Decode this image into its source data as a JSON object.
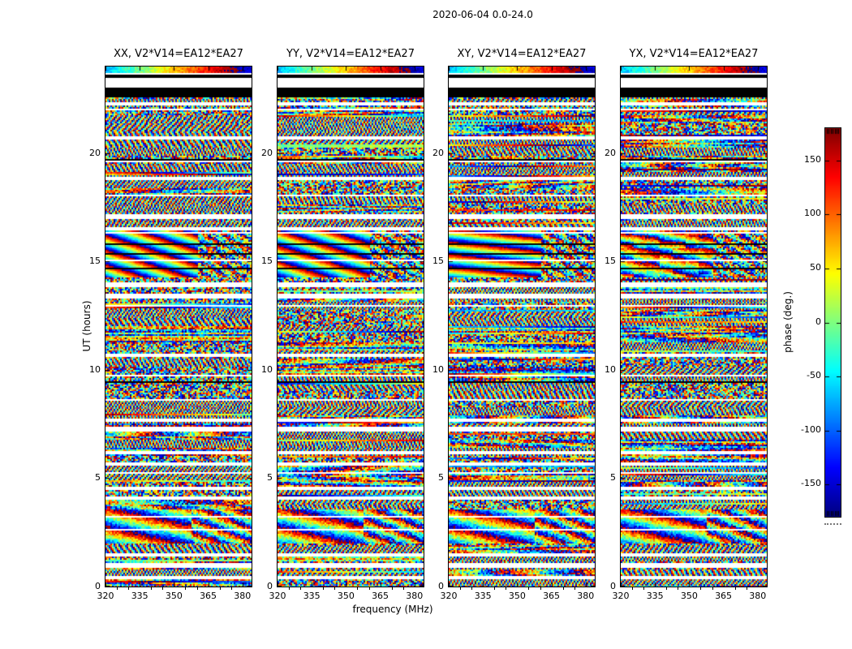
{
  "chart_data": {
    "type": "heatmap",
    "title": "2020-06-04 0.0-24.0",
    "xlabel": "frequency (MHz)",
    "ylabel": "UT (hours)",
    "x_range": [
      320,
      384
    ],
    "x_ticks": [
      320,
      335,
      350,
      365,
      380
    ],
    "x_minor_step_mhz": 5,
    "y_range": [
      0,
      24
    ],
    "y_ticks": [
      0,
      5,
      10,
      15,
      20
    ],
    "colormap": "jet",
    "grid": false,
    "panels": [
      {
        "pol": "XX",
        "title": "XX, V2*V14=EA12*EA27",
        "render_hints": {
          "cs": 13,
          "rs": 40,
          "noise": 24,
          "extra": 0
        }
      },
      {
        "pol": "YY",
        "title": "YY, V2*V14=EA12*EA27",
        "render_hints": {
          "cs": 12,
          "rs": 38,
          "noise": 24,
          "extra": 0
        }
      },
      {
        "pol": "XY",
        "title": "XY, V2*V14=EA12*EA27",
        "render_hints": {
          "cs": 5,
          "rs": 46,
          "noise": 24,
          "extra": 0
        }
      },
      {
        "pol": "YX",
        "title": "YX, V2*V14=EA12*EA27",
        "render_hints": {
          "cs": 9,
          "rs": 42,
          "noise": 70,
          "extra": 55
        }
      }
    ],
    "colorbar": {
      "label": "phase (deg.)",
      "range": [
        -180,
        180
      ],
      "ticks": [
        150,
        100,
        50,
        0,
        -50,
        -100,
        -150
      ],
      "position": "right"
    },
    "data_gaps_ut": [
      [
        23.03,
        23.46
      ],
      [
        22.2,
        22.32
      ],
      [
        20.65,
        20.78
      ],
      [
        18.78,
        18.93
      ],
      [
        17.98,
        18.1
      ],
      [
        16.95,
        17.22
      ],
      [
        16.47,
        16.58
      ],
      [
        16.3,
        16.38
      ],
      [
        15.0,
        15.08
      ],
      [
        13.78,
        14.02
      ],
      [
        13.32,
        13.55
      ],
      [
        12.88,
        13.0
      ],
      [
        10.6,
        10.75
      ],
      [
        9.68,
        9.8
      ],
      [
        7.58,
        7.75
      ],
      [
        7.17,
        7.35
      ],
      [
        6.08,
        6.28
      ],
      [
        5.58,
        5.75
      ],
      [
        5.17,
        5.3
      ],
      [
        4.43,
        4.6
      ],
      [
        4.0,
        4.13
      ],
      [
        3.15,
        3.22
      ],
      [
        2.55,
        2.67
      ],
      [
        1.37,
        1.5
      ],
      [
        0.88,
        1.05
      ],
      [
        0.33,
        0.45
      ]
    ],
    "black_bands_ut": [
      [
        22.54,
        22.99
      ],
      [
        23.46,
        23.6
      ]
    ],
    "black_rows_ut": [
      15.78,
      15.35,
      14.7
    ],
    "features": [
      {
        "name": "strong_phase_fringes",
        "ut": [
          14.25,
          16.45
        ],
        "note": "smooth diagonal phase-wrap fringes, noisier above ~360 MHz"
      },
      {
        "name": "moderate_fringes",
        "ut": [
          1.98,
          3.58
        ],
        "note": "tilted fringes, finer stripes at high frequency"
      },
      {
        "name": "smooth_band_top",
        "ut": [
          23.6,
          24.0
        ],
        "note": "single smooth phase sweep across band"
      }
    ]
  }
}
